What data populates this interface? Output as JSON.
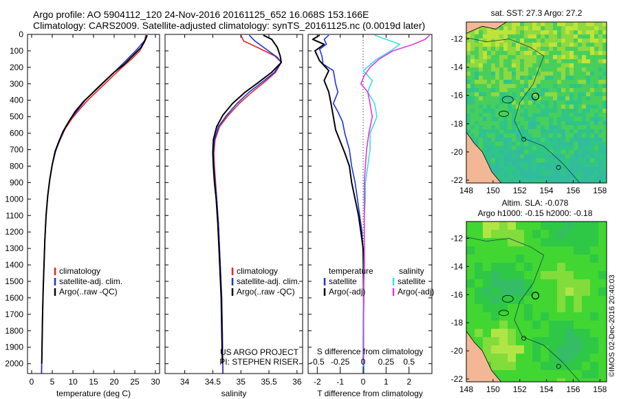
{
  "title": {
    "line1": "Argo profile: AO 5904112_120 24-Nov-2016 20161125_652 16.068S 153.166E",
    "line2": "Climatology: CARS2009. Satellite-adjusted climatology: synTS_20161125.nc (0.0019d later)"
  },
  "colors": {
    "climatology": "#e8231e",
    "satellite": "#1a2fe6",
    "argo": "#000000",
    "sal_satellite": "#33e0e6",
    "sal_argo": "#e633e0"
  },
  "depth_axis": {
    "ticks": [
      0,
      100,
      200,
      300,
      400,
      500,
      600,
      700,
      800,
      900,
      1000,
      1100,
      1200,
      1300,
      1400,
      1500,
      1600,
      1700,
      1800,
      1900,
      2000
    ],
    "range": [
      0,
      2060
    ]
  },
  "chart_data": [
    {
      "type": "line",
      "xlabel": "temperature (deg C)",
      "xlim": [
        -1,
        31
      ],
      "xticks": [
        0,
        5,
        10,
        15,
        20,
        25,
        30
      ],
      "legend": [
        "climatology",
        "satellite-adj. clim.",
        "Argo(..raw -QC)"
      ],
      "series": [
        {
          "name": "climatology",
          "color_key": "climatology",
          "points": [
            [
              27.6,
              5
            ],
            [
              27.5,
              40
            ],
            [
              26.2,
              100
            ],
            [
              24.2,
              150
            ],
            [
              21.5,
              210
            ],
            [
              19.0,
              270
            ],
            [
              16.5,
              330
            ],
            [
              14.0,
              390
            ],
            [
              11.8,
              450
            ],
            [
              9.8,
              510
            ],
            [
              8.2,
              570
            ],
            [
              6.9,
              640
            ],
            [
              5.9,
              700
            ],
            [
              5.0,
              790
            ],
            [
              4.4,
              880
            ],
            [
              3.9,
              980
            ],
            [
              3.5,
              1100
            ],
            [
              3.2,
              1250
            ],
            [
              3.0,
              1400
            ],
            [
              2.8,
              1550
            ],
            [
              2.65,
              1700
            ],
            [
              2.55,
              1850
            ],
            [
              2.45,
              2000
            ],
            [
              2.4,
              2060
            ]
          ]
        },
        {
          "name": "satellite-adj. clim.",
          "color_key": "satellite",
          "points": [
            [
              27.9,
              5
            ],
            [
              27.3,
              40
            ],
            [
              25.2,
              100
            ],
            [
              22.8,
              160
            ],
            [
              20.4,
              220
            ],
            [
              17.8,
              280
            ],
            [
              15.3,
              340
            ],
            [
              13.0,
              400
            ],
            [
              11.1,
              460
            ],
            [
              9.3,
              520
            ],
            [
              7.9,
              580
            ],
            [
              6.7,
              650
            ],
            [
              5.8,
              710
            ],
            [
              5.0,
              790
            ],
            [
              4.4,
              880
            ],
            [
              3.9,
              980
            ],
            [
              3.5,
              1100
            ],
            [
              3.2,
              1250
            ],
            [
              3.0,
              1400
            ],
            [
              2.8,
              1550
            ],
            [
              2.65,
              1700
            ],
            [
              2.55,
              1850
            ],
            [
              2.45,
              2000
            ],
            [
              2.4,
              2060
            ]
          ]
        },
        {
          "name": "Argo(..raw -QC)",
          "color_key": "argo",
          "points": [
            [
              28.0,
              5
            ],
            [
              27.6,
              30
            ],
            [
              26.5,
              80
            ],
            [
              24.5,
              130
            ],
            [
              22.5,
              180
            ],
            [
              20.0,
              230
            ],
            [
              17.5,
              290
            ],
            [
              15.0,
              350
            ],
            [
              12.5,
              410
            ],
            [
              10.5,
              470
            ],
            [
              9.0,
              530
            ],
            [
              7.6,
              590
            ],
            [
              6.6,
              650
            ],
            [
              5.7,
              710
            ],
            [
              5.0,
              790
            ],
            [
              4.4,
              880
            ],
            [
              3.9,
              980
            ],
            [
              3.5,
              1100
            ],
            [
              3.2,
              1250
            ],
            [
              3.0,
              1400
            ],
            [
              2.8,
              1550
            ],
            [
              2.65,
              1700
            ],
            [
              2.55,
              1850
            ],
            [
              2.45,
              2000
            ]
          ]
        }
      ]
    },
    {
      "type": "line",
      "xlabel": "salinity",
      "xlim": [
        33.65,
        36.1
      ],
      "xticks": [
        34,
        34.5,
        35,
        35.5,
        36
      ],
      "legend": [
        "climatology",
        "satellite-adj. clim.",
        "Argo(..raw -QC)"
      ],
      "annotation": [
        "US ARGO PROJECT",
        "PI: STEPHEN RISER"
      ],
      "series": [
        {
          "name": "climatology",
          "color_key": "climatology",
          "points": [
            [
              35.0,
              5
            ],
            [
              35.05,
              40
            ],
            [
              35.3,
              80
            ],
            [
              35.6,
              130
            ],
            [
              35.72,
              170
            ],
            [
              35.62,
              230
            ],
            [
              35.42,
              290
            ],
            [
              35.2,
              350
            ],
            [
              34.97,
              420
            ],
            [
              34.78,
              490
            ],
            [
              34.62,
              560
            ],
            [
              34.54,
              640
            ],
            [
              34.52,
              720
            ],
            [
              34.53,
              800
            ],
            [
              34.55,
              900
            ],
            [
              34.57,
              1000
            ],
            [
              34.6,
              1150
            ],
            [
              34.62,
              1300
            ],
            [
              34.64,
              1450
            ],
            [
              34.66,
              1600
            ],
            [
              34.67,
              1800
            ],
            [
              34.68,
              2060
            ]
          ]
        },
        {
          "name": "satellite-adj. clim.",
          "color_key": "satellite",
          "points": [
            [
              35.15,
              5
            ],
            [
              35.25,
              40
            ],
            [
              35.45,
              90
            ],
            [
              35.65,
              140
            ],
            [
              35.72,
              170
            ],
            [
              35.6,
              230
            ],
            [
              35.38,
              290
            ],
            [
              35.15,
              350
            ],
            [
              34.93,
              420
            ],
            [
              34.75,
              490
            ],
            [
              34.6,
              560
            ],
            [
              34.53,
              640
            ],
            [
              34.51,
              720
            ],
            [
              34.52,
              800
            ],
            [
              34.54,
              900
            ],
            [
              34.57,
              1000
            ],
            [
              34.6,
              1150
            ],
            [
              34.62,
              1300
            ],
            [
              34.64,
              1450
            ],
            [
              34.66,
              1600
            ],
            [
              34.67,
              1800
            ],
            [
              34.68,
              2060
            ]
          ]
        },
        {
          "name": "Argo(..raw -QC)",
          "color_key": "argo",
          "points": [
            [
              35.4,
              5
            ],
            [
              35.55,
              30
            ],
            [
              35.65,
              80
            ],
            [
              35.7,
              130
            ],
            [
              35.72,
              170
            ],
            [
              35.55,
              230
            ],
            [
              35.32,
              290
            ],
            [
              35.08,
              350
            ],
            [
              34.85,
              420
            ],
            [
              34.68,
              490
            ],
            [
              34.57,
              560
            ],
            [
              34.51,
              640
            ],
            [
              34.5,
              720
            ],
            [
              34.51,
              800
            ],
            [
              34.53,
              900
            ],
            [
              34.56,
              1000
            ],
            [
              34.59,
              1150
            ],
            [
              34.61,
              1300
            ],
            [
              34.63,
              1450
            ],
            [
              34.65,
              1600
            ],
            [
              34.66,
              1800
            ],
            [
              34.67,
              2000
            ]
          ]
        }
      ]
    },
    {
      "type": "line",
      "xlabel": "T difference from climatology",
      "xlabel_top": "S difference from climatology",
      "xlim": [
        -2.4,
        3.0
      ],
      "xticks": [
        -2,
        -1,
        0,
        1,
        2
      ],
      "xticks_top": [
        {
          "label": "-0.5",
          "x": -2
        },
        {
          "label": "-0.25",
          "x": -1
        },
        {
          "label": "0",
          "x": 0
        },
        {
          "label": "0.25",
          "x": 1
        },
        {
          "label": "0.5",
          "x": 2
        }
      ],
      "legend": [
        {
          "group": "temperature",
          "items": [
            "satellite",
            "Argo(-adj)"
          ]
        },
        {
          "group": "salinity",
          "items": [
            "satellite",
            "Argo(-adj)"
          ]
        }
      ],
      "series": [
        {
          "name": "satellite",
          "group": "temperature",
          "color_key": "satellite",
          "points": [
            [
              -1.5,
              5
            ],
            [
              -1.7,
              30
            ],
            [
              -1.6,
              60
            ],
            [
              -1.9,
              90
            ],
            [
              -1.8,
              130
            ],
            [
              -1.75,
              180
            ],
            [
              -1.3,
              220
            ],
            [
              -1.2,
              300
            ],
            [
              -1.1,
              350
            ],
            [
              -1.3,
              420
            ],
            [
              -1.1,
              470
            ],
            [
              -0.9,
              530
            ],
            [
              -0.8,
              600
            ],
            [
              -0.6,
              700
            ],
            [
              -0.5,
              800
            ],
            [
              -0.35,
              900
            ],
            [
              -0.25,
              1000
            ],
            [
              -0.15,
              1100
            ],
            [
              -0.05,
              1200
            ],
            [
              0.02,
              1400
            ],
            [
              0.02,
              1700
            ],
            [
              0.02,
              2060
            ]
          ]
        },
        {
          "name": "Argo(-adj)",
          "group": "temperature",
          "color_key": "argo",
          "points": [
            [
              -1.9,
              5
            ],
            [
              -2.2,
              30
            ],
            [
              -1.7,
              60
            ],
            [
              -2.1,
              100
            ],
            [
              -1.9,
              160
            ],
            [
              -1.5,
              220
            ],
            [
              -1.7,
              280
            ],
            [
              -1.5,
              350
            ],
            [
              -1.4,
              420
            ],
            [
              -1.3,
              500
            ],
            [
              -1.2,
              580
            ],
            [
              -1.0,
              650
            ],
            [
              -0.8,
              720
            ],
            [
              -0.6,
              800
            ],
            [
              -0.5,
              900
            ],
            [
              -0.35,
              1000
            ],
            [
              -0.2,
              1100
            ],
            [
              -0.1,
              1200
            ],
            [
              0.0,
              1300
            ],
            [
              0.02,
              1600
            ],
            [
              0.0,
              2000
            ]
          ]
        },
        {
          "name": "satellite",
          "group": "salinity",
          "color_key": "sal_satellite",
          "points": [
            [
              0.5,
              5
            ],
            [
              1.0,
              30
            ],
            [
              1.6,
              60
            ],
            [
              1.2,
              100
            ],
            [
              0.6,
              150
            ],
            [
              0.0,
              220
            ],
            [
              0.4,
              280
            ],
            [
              0.2,
              350
            ],
            [
              0.5,
              420
            ],
            [
              0.6,
              500
            ],
            [
              0.3,
              600
            ],
            [
              0.3,
              700
            ],
            [
              0.2,
              800
            ],
            [
              0.1,
              900
            ],
            [
              0.1,
              1000
            ],
            [
              0.05,
              1100
            ],
            [
              0.05,
              1300
            ],
            [
              0.03,
              1500
            ],
            [
              0.0,
              1700
            ],
            [
              0.0,
              2060
            ]
          ]
        },
        {
          "name": "Argo(-adj)",
          "group": "salinity",
          "color_key": "sal_argo",
          "points": [
            [
              2.9,
              5
            ],
            [
              2.7,
              30
            ],
            [
              2.2,
              60
            ],
            [
              1.3,
              100
            ],
            [
              0.7,
              150
            ],
            [
              0.3,
              200
            ],
            [
              0.05,
              250
            ],
            [
              -0.1,
              300
            ],
            [
              0.2,
              350
            ],
            [
              0.3,
              420
            ],
            [
              0.4,
              500
            ],
            [
              0.25,
              600
            ],
            [
              0.15,
              700
            ],
            [
              0.1,
              800
            ],
            [
              0.05,
              900
            ],
            [
              0.05,
              1000
            ],
            [
              0.05,
              1100
            ],
            [
              0.05,
              1250
            ],
            [
              0.06,
              1400
            ],
            [
              0.03,
              1500
            ],
            [
              0.02,
              1700
            ],
            [
              0.02,
              2000
            ]
          ]
        }
      ]
    },
    {
      "type": "heatmap",
      "title": "sat. SST: 27.3 Argo: 27.2",
      "xlim": [
        148,
        158.5
      ],
      "ylim": [
        -22.2,
        -10.8
      ],
      "xticks": [
        148,
        150,
        152,
        154,
        156,
        158
      ],
      "yticks": [
        -12,
        -14,
        -16,
        -18,
        -20,
        -22
      ],
      "marker": {
        "lon": 153.17,
        "lat": -16.07
      }
    },
    {
      "type": "heatmap",
      "title": "Altim. SLA: -0.078",
      "subtitle": "Argo h1000: -0.15 h2000: -0.18",
      "xlim": [
        148,
        158.5
      ],
      "ylim": [
        -22.2,
        -10.8
      ],
      "xticks": [
        148,
        150,
        152,
        154,
        156,
        158
      ],
      "yticks": [
        -12,
        -14,
        -16,
        -18,
        -20,
        -22
      ],
      "marker": {
        "lon": 153.17,
        "lat": -16.07
      }
    }
  ],
  "footer": "©IMOS 02-Dec-2016 20:40:03"
}
